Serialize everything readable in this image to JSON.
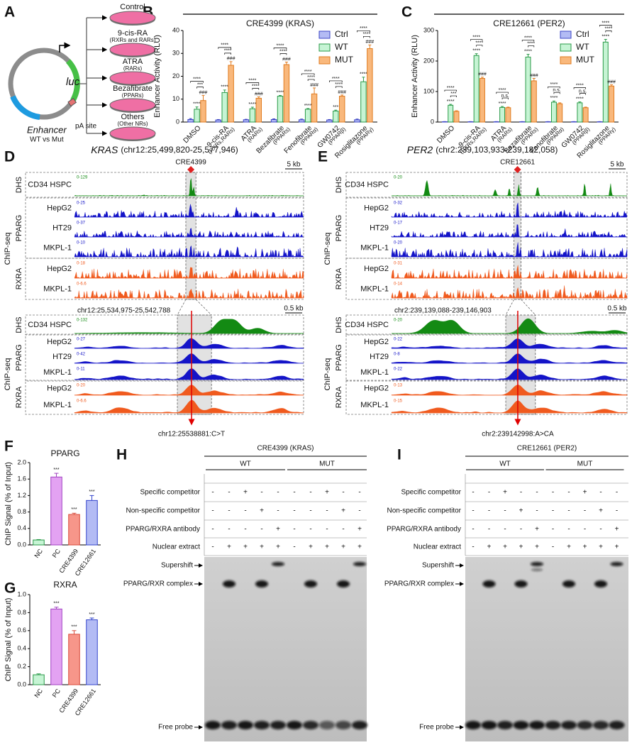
{
  "panel_labels": [
    "A",
    "B",
    "C",
    "D",
    "E",
    "F",
    "G",
    "H",
    "I"
  ],
  "panel_a": {
    "treatments": [
      {
        "name": "Control"
      },
      {
        "name": "9-cis-RA",
        "targets": "(RXRs and RARs)"
      },
      {
        "name": "ATRA",
        "targets": "(RARs)"
      },
      {
        "name": "Bezafibrate",
        "targets": "(PPARs)"
      },
      {
        "name": "Others",
        "targets": "(Other NRs)"
      }
    ],
    "reporter": "luc",
    "enhancer": "Enhancer",
    "enhancer_variants": "WT vs Mut",
    "pa_site": "pA site"
  },
  "chart_data": [
    {
      "type": "bar",
      "title": "CRE4399 (KRAS)",
      "y_label": "Enhancer Activity (RLU)",
      "categories": [
        "DMSO",
        "9-cis-RA",
        "ATRA",
        "Bezafibrate",
        "Fenofibrate",
        "GW0742",
        "Rosiglitazone"
      ],
      "category_notes": [
        null,
        "(RXRs,RARs)",
        "(RARs)",
        "(PPARs)",
        "(PPARα)",
        "(PPARβ)",
        "(PPARγ)"
      ],
      "series": [
        {
          "name": "Ctrl",
          "color": "#b3bbf4",
          "edge_color": "#3b44c4",
          "values": [
            1.1,
            0.9,
            1.0,
            1.1,
            1.0,
            0.9,
            1.0
          ],
          "errors": [
            0.4,
            0.2,
            0.2,
            0.3,
            0.3,
            0.2,
            0.3
          ]
        },
        {
          "name": "WT",
          "color": "#c6f4d4",
          "edge_color": "#2a9a48",
          "values": [
            5.6,
            12.9,
            5.8,
            11.3,
            5.6,
            4.8,
            17.6
          ],
          "errors": [
            1.0,
            1.1,
            0.7,
            0.3,
            0.3,
            0.4,
            2.0
          ],
          "marks": [
            "****",
            "****",
            "****",
            "****",
            "****",
            "***",
            "****"
          ]
        },
        {
          "name": "MUT",
          "color": "#f9b87c",
          "edge_color": "#e07b1f",
          "values": [
            9.4,
            24.8,
            10.4,
            25.1,
            12.3,
            11.3,
            32.1
          ],
          "errors": [
            2.2,
            1.6,
            0.6,
            1.1,
            2.6,
            0.5,
            1.6
          ],
          "marks": [
            "###",
            "###",
            "###",
            "###",
            "###",
            "###",
            "###"
          ]
        }
      ],
      "brackets": [
        [
          "****",
          "***"
        ],
        [
          "****",
          "****"
        ],
        [
          "****",
          "****"
        ],
        [
          "****",
          "****"
        ],
        [
          "****",
          "****"
        ],
        [
          "****",
          "****"
        ],
        [
          "****",
          "****"
        ]
      ],
      "ylim": [
        0,
        40
      ],
      "yticks": [
        0,
        10,
        20,
        30,
        40
      ],
      "legend": "upper right"
    },
    {
      "type": "bar",
      "title": "CRE12661 (PER2)",
      "y_label": "Enhancer Activity (RLU)",
      "categories": [
        "DMSO",
        "9-cis-RA",
        "ATRA",
        "Bezafibrate",
        "Fenofibrate",
        "GW0742",
        "Rosiglitazone"
      ],
      "category_notes": [
        null,
        "(RXRs,RARs)",
        "(RARs)",
        "(PPARs)",
        "(PPARα)",
        "(PPARβ)",
        "(PPARγ)"
      ],
      "series": [
        {
          "name": "Ctrl",
          "color": "#b3bbf4",
          "edge_color": "#3b44c4",
          "values": [
            1,
            1,
            1,
            1,
            1,
            1,
            1
          ],
          "errors": [
            0.5,
            0.5,
            0.5,
            0.5,
            0.5,
            0.5,
            0.5
          ]
        },
        {
          "name": "WT",
          "color": "#c6f4d4",
          "edge_color": "#2a9a48",
          "values": [
            55,
            218,
            48,
            213,
            65,
            63,
            262
          ],
          "errors": [
            3,
            6,
            3,
            9,
            4,
            3,
            9
          ],
          "marks": [
            "****",
            "****",
            "****",
            "****",
            "****",
            "****",
            "****"
          ]
        },
        {
          "name": "MUT",
          "color": "#f9b87c",
          "edge_color": "#e07b1f",
          "values": [
            35,
            143,
            47,
            135,
            60,
            47,
            118
          ],
          "errors": [
            2,
            4,
            2,
            8,
            3,
            2,
            4
          ],
          "marks": [
            null,
            "###",
            null,
            "###",
            null,
            null,
            "###"
          ]
        }
      ],
      "brackets": [
        [
          "****",
          "***"
        ],
        [
          "****",
          "****"
        ],
        [
          "****",
          "n.s."
        ],
        [
          "****",
          "****"
        ],
        [
          "****",
          "n.s."
        ],
        [
          "****",
          "n.s."
        ],
        [
          "****",
          "****"
        ]
      ],
      "ylim": [
        0,
        300
      ],
      "yticks": [
        0,
        100,
        200,
        300
      ],
      "legend": "upper right"
    },
    {
      "type": "bar",
      "title": "PPARG",
      "y_label": "ChIP Signal (% of Input)",
      "categories": [
        "NC",
        "PC",
        "CRE4399",
        "CRE12661"
      ],
      "values": [
        0.12,
        1.65,
        0.74,
        1.08
      ],
      "errors": [
        0.01,
        0.09,
        0.03,
        0.12
      ],
      "colors": [
        "#c6f4d4",
        "#e3a2f2",
        "#f7968a",
        "#b3bbf4"
      ],
      "edge_colors": [
        "#2a9a48",
        "#a040c0",
        "#d94a3a",
        "#3344cc"
      ],
      "marks": [
        null,
        "***",
        "***",
        "***"
      ],
      "ylim": [
        0,
        2.0
      ],
      "yticks": [
        {
          "value": 0,
          "label": "0.0"
        },
        0.4,
        0.8,
        1.2,
        1.6,
        {
          "value": 2,
          "label": "2.0"
        }
      ]
    },
    {
      "type": "bar",
      "title": "RXRA",
      "y_label": "ChIP Signal (% of Input)",
      "categories": [
        "NC",
        "PC",
        "CRE4399",
        "CRE12661"
      ],
      "values": [
        0.11,
        0.84,
        0.56,
        0.72
      ],
      "errors": [
        0.01,
        0.02,
        0.04,
        0.02
      ],
      "colors": [
        "#c6f4d4",
        "#e3a2f2",
        "#f7968a",
        "#b3bbf4"
      ],
      "edge_colors": [
        "#2a9a48",
        "#a040c0",
        "#d94a3a",
        "#3344cc"
      ],
      "marks": [
        null,
        "***",
        "***",
        "***"
      ],
      "ylim": [
        0,
        1.0
      ],
      "yticks": [
        {
          "value": 0,
          "label": "0.0"
        },
        0.2,
        0.4,
        0.6,
        0.8,
        {
          "value": 1,
          "label": "1.0"
        }
      ]
    }
  ],
  "panel_d": {
    "gene": "KRAS",
    "region": "(chr12:25,499,820-25,577,946)",
    "cre": "CRE4399",
    "scale": "5 kb",
    "zoom_region": "chr12:25,534,975-25,542,788",
    "zoom_scale": "0.5 kb",
    "variant": "chr12:25538881:C>T",
    "assays": {
      "dhs": "DHS",
      "chip": "ChIP-seq"
    },
    "factors": [
      "PPARG",
      "RXRA"
    ],
    "tracks": [
      {
        "cell": "CD34 HSPC",
        "range": "0-129",
        "zoom_range": "0-132"
      },
      {
        "cell": "HepG2",
        "range": "0-25",
        "zoom_range": "0-27"
      },
      {
        "cell": "HT29",
        "range": "0-37",
        "zoom_range": "0-42"
      },
      {
        "cell": "MKPL-1",
        "range": "0-10",
        "zoom_range": "0-11"
      },
      {
        "cell": "HepG2",
        "range": "0-18",
        "zoom_range": "0-20"
      },
      {
        "cell": "MKPL-1",
        "range": "0-6.6",
        "zoom_range": "0-6.6"
      }
    ]
  },
  "panel_e": {
    "gene": "PER2",
    "region": "(chr2:239,103,933-239,182,058)",
    "cre": "CRE12661",
    "scale": "5 kb",
    "zoom_region": "chr2:239,139,088-239,146,903",
    "zoom_scale": "0.5 kb",
    "variant": "chr2:239142998:A>CA",
    "assays": {
      "dhs": "DHS",
      "chip": "ChIP-seq"
    },
    "factors": [
      "PPARG",
      "RXRA"
    ],
    "tracks": [
      {
        "cell": "CD34 HSPC",
        "range": "0-20",
        "zoom_range": "0-20"
      },
      {
        "cell": "HepG2",
        "range": "0-32",
        "zoom_range": "0-22"
      },
      {
        "cell": "HT29",
        "range": "0-17",
        "zoom_range": "0-8"
      },
      {
        "cell": "MKPL-1",
        "range": "0-20",
        "zoom_range": "0-22"
      },
      {
        "cell": "HepG2",
        "range": "0-31",
        "zoom_range": "0-13"
      },
      {
        "cell": "MKPL-1",
        "range": "0-14",
        "zoom_range": "0-15"
      }
    ]
  },
  "panel_h": {
    "title": "CRE4399 (KRAS)",
    "groups": [
      "WT",
      "MUT"
    ],
    "conditions": [
      {
        "name": "Specific competitor",
        "lanes": [
          "-",
          "-",
          "+",
          "-",
          "-",
          "-",
          "-",
          "+",
          "-",
          "-"
        ]
      },
      {
        "name": "Non-specific competitor",
        "lanes": [
          "-",
          "-",
          "-",
          "+",
          "-",
          "-",
          "-",
          "-",
          "+",
          "-"
        ]
      },
      {
        "name": "PPARG/RXRA antibody",
        "lanes": [
          "-",
          "-",
          "-",
          "-",
          "+",
          "-",
          "-",
          "-",
          "-",
          "+"
        ]
      },
      {
        "name": "Nuclear extract",
        "lanes": [
          "-",
          "+",
          "+",
          "+",
          "+",
          "-",
          "+",
          "+",
          "+",
          "+"
        ]
      }
    ],
    "bands": [
      "Supershift",
      "PPARG/RXR complex",
      "Free probe"
    ]
  },
  "panel_i": {
    "title": "CRE12661 (PER2)",
    "groups": [
      "WT",
      "MUT"
    ],
    "conditions": [
      {
        "name": "Specific competitor",
        "lanes": [
          "-",
          "-",
          "+",
          "-",
          "-",
          "-",
          "-",
          "+",
          "-",
          "-"
        ]
      },
      {
        "name": "Non-specific competitor",
        "lanes": [
          "-",
          "-",
          "-",
          "+",
          "-",
          "-",
          "-",
          "-",
          "+",
          "-"
        ]
      },
      {
        "name": "PPARG/RXRA antibody",
        "lanes": [
          "-",
          "-",
          "-",
          "-",
          "+",
          "-",
          "-",
          "-",
          "-",
          "+"
        ]
      },
      {
        "name": "Nuclear extract",
        "lanes": [
          "-",
          "+",
          "+",
          "+",
          "+",
          "-",
          "+",
          "+",
          "+",
          "+"
        ]
      }
    ],
    "bands": [
      "Supershift",
      "PPARG/RXR complex",
      "Free probe"
    ]
  }
}
